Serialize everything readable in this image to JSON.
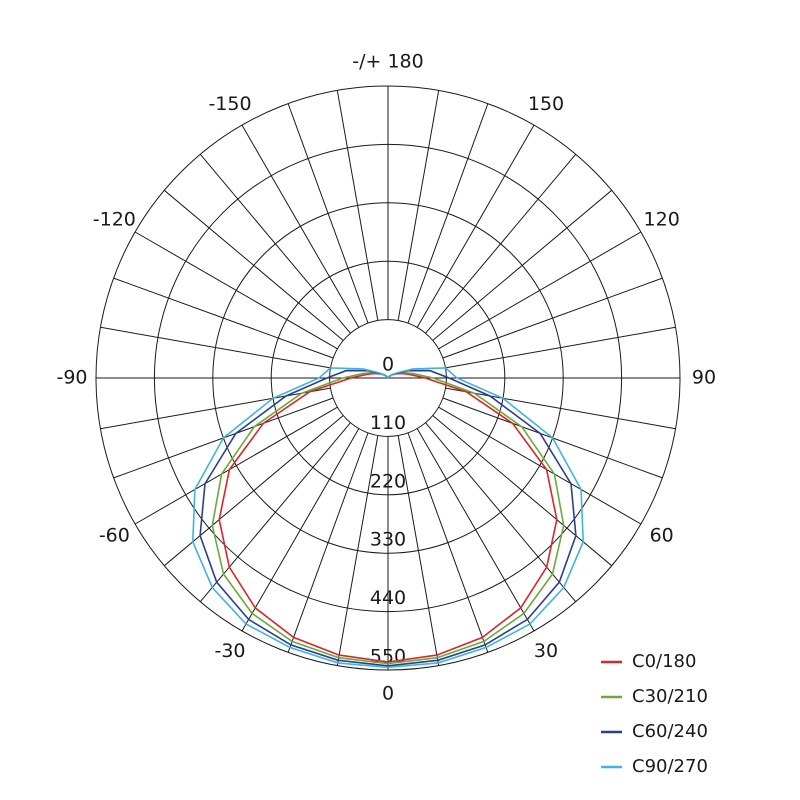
{
  "chart_data": {
    "type": "polar",
    "angles": [
      -180,
      -170,
      -160,
      -150,
      -140,
      -130,
      -120,
      -110,
      -100,
      -90,
      -80,
      -70,
      -60,
      -50,
      -40,
      -30,
      -20,
      -10,
      0,
      10,
      20,
      30,
      40,
      50,
      60,
      70,
      80,
      90,
      100,
      110,
      120,
      130,
      140,
      150,
      160,
      170,
      180
    ],
    "rlim": [
      0,
      550
    ],
    "rticks": [
      0,
      110,
      220,
      330,
      440,
      550
    ],
    "angle_ticks": [
      {
        "value": 180,
        "label": "-/+ 180"
      },
      150,
      120,
      90,
      60,
      30,
      0,
      -30,
      -60,
      -90,
      -120,
      -150
    ],
    "legend": "bottom-right",
    "series": [
      {
        "name": "C0/180",
        "color": "#d9262a",
        "values": [
          0,
          1,
          2,
          3,
          5,
          10,
          15,
          25,
          40,
          70,
          150,
          250,
          345,
          415,
          465,
          500,
          520,
          530,
          535,
          530,
          520,
          500,
          465,
          415,
          345,
          250,
          150,
          70,
          40,
          25,
          15,
          10,
          5,
          3,
          2,
          1,
          0
        ]
      },
      {
        "name": "C30/210",
        "color": "#6aaa3a",
        "values": [
          0,
          1,
          2,
          3,
          5,
          10,
          18,
          30,
          48,
          85,
          165,
          268,
          362,
          432,
          482,
          512,
          528,
          535,
          538,
          535,
          528,
          512,
          482,
          432,
          362,
          268,
          165,
          85,
          48,
          30,
          18,
          10,
          5,
          3,
          2,
          1,
          0
        ]
      },
      {
        "name": "C60/240",
        "color": "#2b3f8f",
        "values": [
          0,
          1,
          1,
          2,
          4,
          8,
          15,
          40,
          80,
          115,
          195,
          305,
          398,
          462,
          502,
          525,
          535,
          540,
          542,
          540,
          535,
          525,
          502,
          462,
          398,
          305,
          195,
          115,
          80,
          40,
          15,
          8,
          4,
          2,
          1,
          1,
          0
        ]
      },
      {
        "name": "C90/270",
        "color": "#3fb4e0",
        "values": [
          0,
          1,
          1,
          2,
          4,
          8,
          20,
          50,
          110,
          130,
          220,
          330,
          420,
          480,
          515,
          535,
          540,
          545,
          545,
          545,
          540,
          535,
          515,
          480,
          420,
          330,
          220,
          130,
          110,
          50,
          20,
          8,
          4,
          2,
          1,
          1,
          0
        ]
      }
    ]
  }
}
